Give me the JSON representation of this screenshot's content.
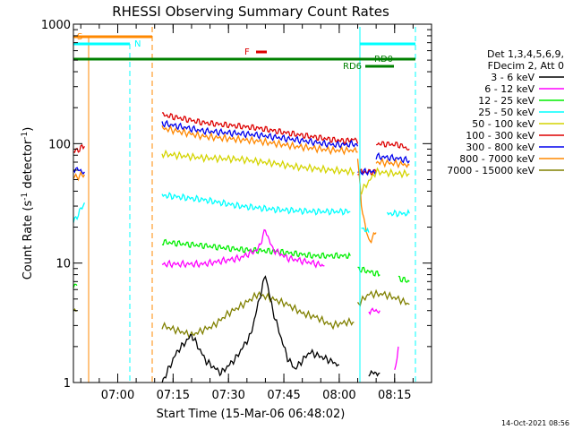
{
  "chart_data": {
    "type": "line",
    "title": "RHESSI Observing Summary Count Rates",
    "xlabel": "Start Time (15-Mar-06 06:48:02)",
    "ylabel_main": "Count Rate (s",
    "ylabel_sup1": "-1",
    "ylabel_mid": " detector",
    "ylabel_sup2": "-1",
    "ylabel_end": ")",
    "yscale": "log",
    "ylim": [
      1,
      1000
    ],
    "xlim_minutes": [
      0,
      97
    ],
    "x_ticks": [
      {
        "t": 12,
        "label": "07:00"
      },
      {
        "t": 27,
        "label": "07:15"
      },
      {
        "t": 42,
        "label": "07:30"
      },
      {
        "t": 57,
        "label": "07:45"
      },
      {
        "t": 72,
        "label": "08:00"
      },
      {
        "t": 87,
        "label": "08:15"
      }
    ],
    "y_ticks": [
      {
        "v": 1,
        "label": "1"
      },
      {
        "v": 10,
        "label": "10"
      },
      {
        "v": 100,
        "label": "100"
      },
      {
        "v": 1000,
        "label": "1000"
      }
    ],
    "legend": {
      "header1": "Det 1,3,4,5,6,9,",
      "header2": "FDecim 2, Att 0",
      "entries": [
        {
          "label": "3 - 6 keV",
          "color": "#000000"
        },
        {
          "label": "6 - 12 keV",
          "color": "#ff00ff"
        },
        {
          "label": "12 - 25 keV",
          "color": "#00ee00"
        },
        {
          "label": "25 - 50 keV",
          "color": "#00ffff"
        },
        {
          "label": "50 - 100 keV",
          "color": "#d4d400"
        },
        {
          "label": "100 - 300 keV",
          "color": "#dd0000"
        },
        {
          "label": "300 - 800 keV",
          "color": "#0000ee"
        },
        {
          "label": "800 - 7000 keV",
          "color": "#ff8800"
        },
        {
          "label": "7000 - 15000 keV",
          "color": "#808000"
        }
      ],
      "position": "right"
    },
    "flags": [
      {
        "label": "S",
        "color": "#ff8800"
      },
      {
        "label": "N",
        "color": "#00ffff"
      },
      {
        "label": "F",
        "color": "#dd0000"
      },
      {
        "label": "RD0",
        "color": "#008000"
      },
      {
        "label": "RD6",
        "color": "#008000"
      }
    ],
    "series": [
      {
        "name": "100 - 300 keV",
        "color": "#dd0000",
        "segments": [
          {
            "x": [
              0,
              3
            ],
            "y": [
              85,
              95
            ]
          },
          {
            "x": [
              24,
              35,
              50,
              60,
              70,
              74,
              76,
              77
            ],
            "y": [
              175,
              150,
              135,
              120,
              108,
              105,
              110,
              100
            ]
          },
          {
            "x": [
              77,
              82
            ],
            "y": [
              58,
              58
            ]
          },
          {
            "x": [
              82,
              88,
              91
            ],
            "y": [
              100,
              98,
              90
            ]
          }
        ]
      },
      {
        "name": "300 - 800 keV",
        "color": "#0000ee",
        "segments": [
          {
            "x": [
              0,
              3
            ],
            "y": [
              62,
              58
            ]
          },
          {
            "x": [
              24,
              35,
              50,
              60,
              70,
              74,
              76,
              77
            ],
            "y": [
              148,
              128,
              118,
              108,
              98,
              98,
              100,
              95
            ]
          },
          {
            "x": [
              77,
              82
            ],
            "y": [
              58,
              58
            ]
          },
          {
            "x": [
              82,
              88,
              91
            ],
            "y": [
              78,
              75,
              72
            ]
          }
        ]
      },
      {
        "name": "800 - 7000 keV",
        "color": "#ff8800",
        "segments": [
          {
            "x": [
              0,
              3
            ],
            "y": [
              52,
              55
            ]
          },
          {
            "x": [
              24,
              35,
              50,
              60,
              70,
              74,
              76,
              77
            ],
            "y": [
              135,
              115,
              105,
              95,
              88,
              88,
              88,
              85
            ]
          },
          {
            "x": [
              77,
              78,
              80,
              82
            ],
            "y": [
              80,
              30,
              15,
              18
            ]
          },
          {
            "x": [
              82,
              88,
              91
            ],
            "y": [
              70,
              68,
              66
            ]
          }
        ]
      },
      {
        "name": "50 - 100 keV",
        "color": "#d4d400",
        "segments": [
          {
            "x": [
              24,
              35,
              45,
              55,
              60,
              70,
              76
            ],
            "y": [
              82,
              76,
              74,
              68,
              64,
              60,
              58
            ]
          },
          {
            "x": [
              78,
              82,
              88,
              91
            ],
            "y": [
              40,
              58,
              56,
              56
            ]
          }
        ]
      },
      {
        "name": "25 - 50 keV",
        "color": "#00ffff",
        "segments": [
          {
            "x": [
              0,
              2,
              3
            ],
            "y": [
              22,
              28,
              32
            ]
          },
          {
            "x": [
              24,
              35,
              45,
              55,
              65,
              75
            ],
            "y": [
              37,
              34,
              30,
              28,
              27,
              27
            ]
          },
          {
            "x": [
              78,
              80
            ],
            "y": [
              20,
              18
            ]
          },
          {
            "x": [
              85,
              88,
              91
            ],
            "y": [
              26,
              26,
              26
            ]
          }
        ]
      },
      {
        "name": "12 - 25 keV",
        "color": "#00ee00",
        "segments": [
          {
            "x": [
              -1,
              1
            ],
            "y": [
              6.5,
              6.5
            ]
          },
          {
            "x": [
              24,
              35,
              45,
              55,
              65,
              75
            ],
            "y": [
              15,
              14,
              13,
              12.5,
              11.5,
              11.5
            ]
          },
          {
            "x": [
              77,
              80,
              83
            ],
            "y": [
              9,
              8.5,
              8
            ]
          },
          {
            "x": [
              88,
              91
            ],
            "y": [
              7.5,
              7
            ]
          }
        ]
      },
      {
        "name": "6 - 12 keV",
        "color": "#ff00ff",
        "segments": [
          {
            "x": [
              24,
              35,
              45,
              50,
              52,
              54,
              58,
              65,
              68
            ],
            "y": [
              9.8,
              9.8,
              11,
              13,
              19,
              13,
              11,
              10,
              9.5
            ]
          },
          {
            "x": [
              80,
              83
            ],
            "y": [
              4,
              4
            ]
          },
          {
            "x": [
              87,
              88
            ],
            "y": [
              1.2,
              2
            ]
          }
        ]
      },
      {
        "name": "7000 - 15000 keV",
        "color": "#808000",
        "segments": [
          {
            "x": [
              -1,
              1
            ],
            "y": [
              4,
              4
            ]
          },
          {
            "x": [
              24,
              32,
              38,
              42,
              46,
              50,
              54,
              58,
              62,
              66,
              70,
              74,
              76
            ],
            "y": [
              3,
              2.5,
              3,
              3.8,
              4.5,
              5.5,
              5,
              4.5,
              3.8,
              3.5,
              3,
              3.2,
              3.2
            ]
          },
          {
            "x": [
              77,
              80,
              84,
              88,
              91
            ],
            "y": [
              4.5,
              5.5,
              5.5,
              5,
              4.5
            ]
          }
        ]
      },
      {
        "name": "3 - 6 keV",
        "color": "#000000",
        "segments": [
          {
            "x": [
              24,
              28,
              32,
              36,
              40,
              44,
              48,
              50,
              52,
              54,
              56,
              58,
              60,
              64,
              68,
              72
            ],
            "y": [
              1,
              1.8,
              2.5,
              1.5,
              1.2,
              1.6,
              2.5,
              4.5,
              8,
              4,
              2.5,
              1.6,
              1.3,
              1.8,
              1.6,
              1.4
            ]
          },
          {
            "x": [
              80,
              83
            ],
            "y": [
              1.2,
              1.2
            ]
          }
        ]
      }
    ],
    "grid": false
  },
  "footer": {
    "timestamp": "14-Oct-2021 08:56"
  }
}
